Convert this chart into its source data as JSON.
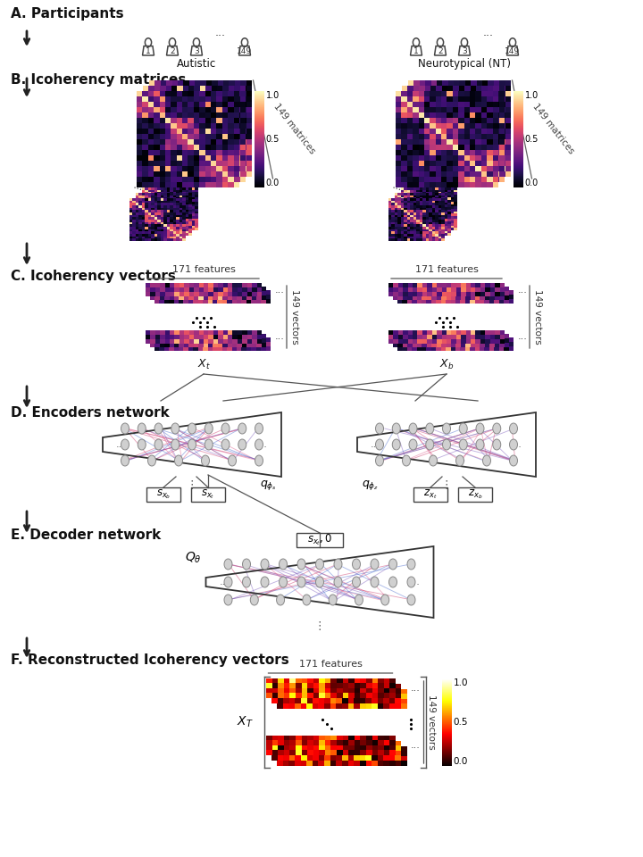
{
  "title_A": "A. Participants",
  "title_B": "B. Icoherency matrices",
  "title_C": "C. Icoherency vectors",
  "title_D": "D. Encoders network",
  "title_E": "E. Decoder network",
  "title_F": "F. Reconstructed Icoherency vectors",
  "label_autistic": "Autistic",
  "label_nt": "Neurotypical (NT)",
  "label_149_matrices": "149 matrices",
  "label_149_vectors": "149 vectors",
  "label_171_features": "171 features",
  "bg_color": "#ffffff",
  "arrow_color": "#222222",
  "line_color": "#555555",
  "text_color": "#111111",
  "section_fs": 11,
  "body_fs": 9
}
